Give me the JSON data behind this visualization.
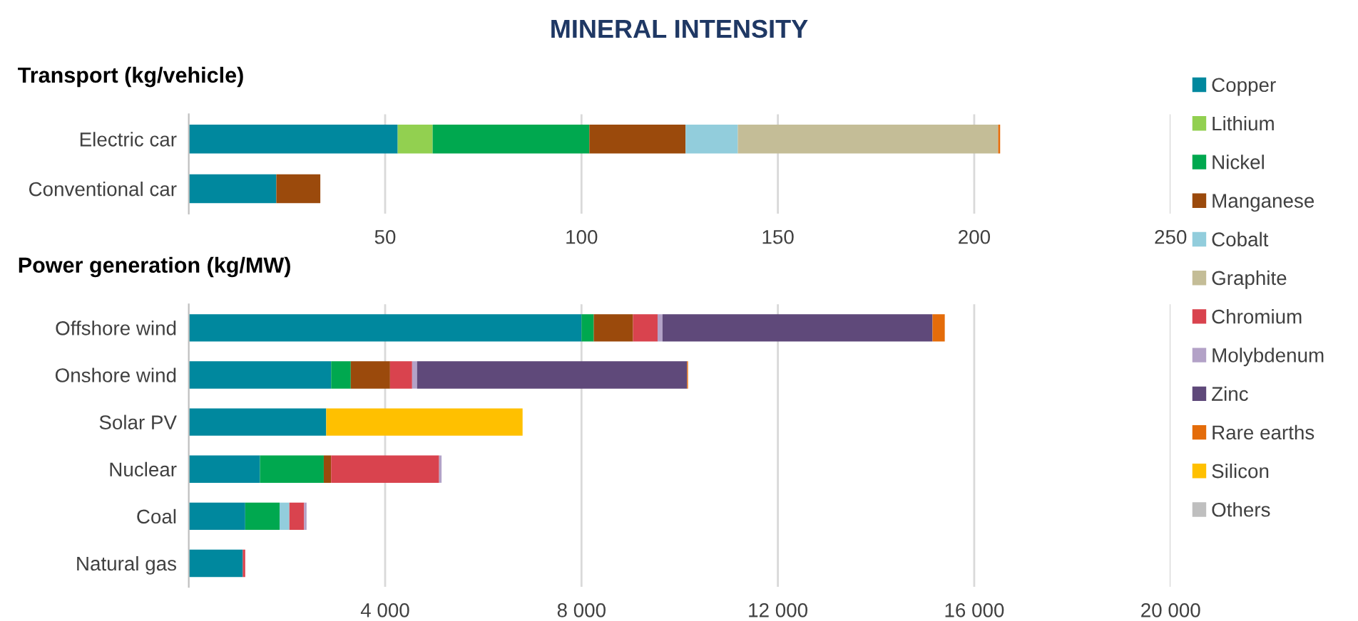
{
  "chart_data": [
    {
      "type": "bar",
      "orientation": "horizontal",
      "stacked": true,
      "title": "MINERAL INTENSITY",
      "subtitle": "Transport (kg/vehicle)",
      "categories": [
        "Electric car",
        "Conventional car"
      ],
      "series": [
        {
          "name": "Copper",
          "color": "#00889e",
          "values": [
            53.2,
            22.3
          ]
        },
        {
          "name": "Lithium",
          "color": "#92d050",
          "values": [
            8.9,
            null
          ]
        },
        {
          "name": "Nickel",
          "color": "#00a84f",
          "values": [
            39.9,
            null
          ]
        },
        {
          "name": "Manganese",
          "color": "#9b4a0c",
          "values": [
            24.5,
            11.2
          ]
        },
        {
          "name": "Cobalt",
          "color": "#92cddc",
          "values": [
            13.3,
            null
          ]
        },
        {
          "name": "Graphite",
          "color": "#c4bd97",
          "values": [
            66.3,
            null
          ]
        },
        {
          "name": "Chromium",
          "color": "#d9434e",
          "values": [
            null,
            null
          ]
        },
        {
          "name": "Molybdenum",
          "color": "#b3a2c7",
          "values": [
            null,
            null
          ]
        },
        {
          "name": "Zinc",
          "color": "#5f497a",
          "values": [
            null,
            null
          ]
        },
        {
          "name": "Rare earths",
          "color": "#e46c0a",
          "values": [
            0.5,
            null
          ]
        },
        {
          "name": "Silicon",
          "color": "#ffc000",
          "values": [
            null,
            null
          ]
        },
        {
          "name": "Others",
          "color": "#bfbfbf",
          "values": [
            null,
            null
          ]
        }
      ],
      "xlim": [
        0,
        250
      ],
      "xticks": [
        50,
        100,
        150,
        200,
        250
      ],
      "grid": "x",
      "legend": "right"
    },
    {
      "type": "bar",
      "orientation": "horizontal",
      "stacked": true,
      "subtitle": "Power generation (kg/MW)",
      "categories": [
        "Offshore wind",
        "Onshore wind",
        "Solar PV",
        "Nuclear",
        "Coal",
        "Natural gas"
      ],
      "series": [
        {
          "color": "#00889e",
          "values": [
            8000,
            2900,
            2800,
            1450,
            1150,
            1100
          ]
        },
        {
          "color": "#00a84f",
          "values": [
            250,
            400,
            null,
            1300,
            700,
            null
          ]
        },
        {
          "color": "#9b4a0c",
          "values": [
            800,
            800,
            null,
            150,
            null,
            null
          ]
        },
        {
          "color": "#92cddc",
          "values": [
            null,
            null,
            null,
            null,
            200,
            null
          ]
        },
        {
          "color": "#d9434e",
          "values": [
            500,
            450,
            null,
            2200,
            300,
            50
          ]
        },
        {
          "color": "#b3a2c7",
          "values": [
            100,
            100,
            null,
            50,
            50,
            null
          ]
        },
        {
          "color": "#5f497a",
          "values": [
            5500,
            5500,
            null,
            null,
            null,
            null
          ]
        },
        {
          "color": "#e46c0a",
          "values": [
            250,
            20,
            null,
            null,
            null,
            null
          ]
        },
        {
          "color": "#ffc000",
          "values": [
            null,
            null,
            4000,
            null,
            null,
            null
          ]
        }
      ],
      "xlim": [
        0,
        20000
      ],
      "xticks": [
        {
          "value": 4000,
          "label": "4 000"
        },
        {
          "value": 8000,
          "label": "8 000"
        },
        {
          "value": 12000,
          "label": "12 000"
        },
        {
          "value": 16000,
          "label": "16 000"
        },
        {
          "value": 20000,
          "label": "20 000"
        }
      ],
      "grid": "x",
      "legend": false
    }
  ]
}
